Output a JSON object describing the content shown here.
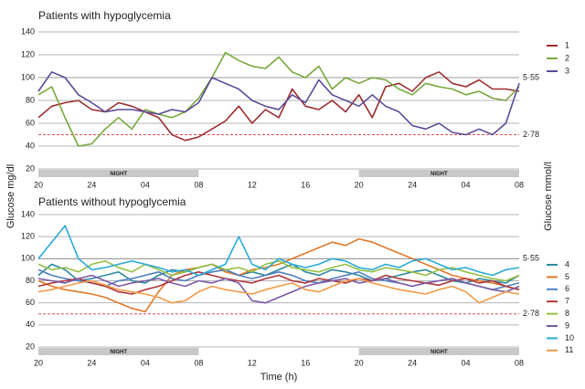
{
  "axis_labels": {
    "y": "Glucose mg/dl",
    "y2": "Glucose mmol/l",
    "x": "Time (h)"
  },
  "chart_data": [
    {
      "type": "line",
      "title": "Patients  with  hypoglycemia",
      "categories": [
        "20",
        null,
        null,
        null,
        "24",
        null,
        null,
        null,
        "04",
        null,
        null,
        null,
        "08",
        null,
        null,
        null,
        "12",
        null,
        null,
        null,
        "16",
        null,
        null,
        null,
        "20",
        null,
        null,
        null,
        "24",
        null,
        null,
        null,
        "04",
        null,
        null,
        null,
        "08"
      ],
      "ylim": [
        20,
        140
      ],
      "yticks": [
        20,
        40,
        60,
        80,
        100,
        120,
        140
      ],
      "grid": true,
      "reference_lines": [
        {
          "value": 100,
          "label": "5·55",
          "color": "#999999",
          "dashed": false
        },
        {
          "value": 50,
          "label": "2·78",
          "color": "#e05050",
          "dashed": true
        }
      ],
      "bands": [
        {
          "label": "NIGHT",
          "start": 0,
          "end": 12
        },
        {
          "label": "NIGHT",
          "start": 24,
          "end": 36
        }
      ],
      "series": [
        {
          "name": "1",
          "color": "#9b2d30",
          "values": [
            65,
            75,
            78,
            80,
            72,
            70,
            78,
            75,
            70,
            65,
            50,
            45,
            48,
            55,
            62,
            75,
            60,
            72,
            65,
            90,
            75,
            72,
            80,
            70,
            85,
            65,
            92,
            95,
            88,
            100,
            105,
            95,
            92,
            98,
            90,
            90,
            88
          ]
        },
        {
          "name": "2",
          "color": "#77a83c",
          "values": [
            85,
            92,
            65,
            40,
            42,
            55,
            65,
            55,
            72,
            68,
            65,
            70,
            82,
            100,
            122,
            115,
            110,
            108,
            118,
            105,
            100,
            110,
            90,
            100,
            95,
            100,
            98,
            90,
            85,
            95,
            92,
            90,
            85,
            88,
            82,
            80,
            92
          ]
        },
        {
          "name": "3",
          "color": "#5b4a96",
          "values": [
            88,
            105,
            100,
            85,
            78,
            70,
            72,
            72,
            70,
            68,
            72,
            70,
            78,
            100,
            95,
            90,
            80,
            75,
            72,
            85,
            78,
            98,
            85,
            80,
            75,
            85,
            75,
            70,
            58,
            55,
            60,
            52,
            50,
            55,
            50,
            60,
            95
          ]
        }
      ]
    },
    {
      "type": "line",
      "title": "Patients  without  hypoglycemia",
      "categories": [
        "20",
        null,
        null,
        null,
        "24",
        null,
        null,
        null,
        "04",
        null,
        null,
        null,
        "08",
        null,
        null,
        null,
        "12",
        null,
        null,
        null,
        "16",
        null,
        null,
        null,
        "20",
        null,
        null,
        null,
        "24",
        null,
        null,
        null,
        "04",
        null,
        null,
        null,
        "08"
      ],
      "ylim": [
        20,
        140
      ],
      "yticks": [
        20,
        40,
        60,
        80,
        100,
        120,
        140
      ],
      "grid": true,
      "reference_lines": [
        {
          "value": 100,
          "label": "5·55",
          "color": "#999999",
          "dashed": false
        },
        {
          "value": 50,
          "label": "2·78",
          "color": "#e05050",
          "dashed": true
        }
      ],
      "bands": [
        {
          "label": "NIGHT",
          "start": 0,
          "end": 12
        },
        {
          "label": "NIGHT",
          "start": 24,
          "end": 36
        }
      ],
      "series": [
        {
          "name": "4",
          "color": "#2e8a9e",
          "values": [
            85,
            95,
            90,
            80,
            82,
            85,
            88,
            80,
            78,
            85,
            90,
            88,
            92,
            95,
            90,
            85,
            88,
            85,
            90,
            95,
            88,
            85,
            90,
            88,
            85,
            80,
            82,
            85,
            88,
            90,
            85,
            80,
            78,
            82,
            80,
            78,
            85
          ]
        },
        {
          "name": "5",
          "color": "#e0782a",
          "values": [
            80,
            75,
            72,
            70,
            68,
            65,
            60,
            55,
            52,
            70,
            85,
            90,
            92,
            95,
            88,
            85,
            90,
            92,
            95,
            100,
            105,
            110,
            115,
            112,
            118,
            115,
            110,
            105,
            100,
            95,
            90,
            85,
            82,
            80,
            78,
            75,
            72
          ]
        },
        {
          "name": "6",
          "color": "#4f7fc0",
          "values": [
            90,
            85,
            82,
            80,
            78,
            75,
            80,
            82,
            85,
            88,
            82,
            80,
            85,
            88,
            90,
            85,
            82,
            85,
            88,
            85,
            80,
            78,
            82,
            85,
            88,
            82,
            80,
            78,
            75,
            78,
            80,
            82,
            78,
            75,
            72,
            75,
            78
          ]
        },
        {
          "name": "7",
          "color": "#b0363a",
          "values": [
            75,
            78,
            80,
            82,
            78,
            75,
            70,
            68,
            72,
            75,
            80,
            85,
            88,
            85,
            82,
            80,
            78,
            82,
            85,
            80,
            78,
            82,
            80,
            78,
            82,
            80,
            85,
            82,
            80,
            78,
            76,
            80,
            82,
            78,
            80,
            75,
            72
          ]
        },
        {
          "name": "8",
          "color": "#94c044",
          "values": [
            95,
            90,
            92,
            88,
            95,
            98,
            92,
            88,
            95,
            90,
            85,
            88,
            92,
            95,
            90,
            92,
            88,
            95,
            98,
            92,
            90,
            88,
            92,
            95,
            90,
            88,
            92,
            90,
            88,
            85,
            90,
            92,
            88,
            85,
            82,
            80,
            85
          ]
        },
        {
          "name": "9",
          "color": "#7b5aa6",
          "values": [
            82,
            80,
            78,
            82,
            85,
            80,
            75,
            78,
            80,
            82,
            78,
            75,
            80,
            78,
            82,
            78,
            62,
            60,
            65,
            70,
            75,
            78,
            80,
            82,
            78,
            80,
            82,
            78,
            75,
            78,
            80,
            82,
            78,
            75,
            72,
            70,
            75
          ]
        },
        {
          "name": "10",
          "color": "#2aaad6",
          "values": [
            100,
            115,
            130,
            100,
            90,
            92,
            95,
            98,
            95,
            92,
            88,
            90,
            85,
            90,
            95,
            120,
            95,
            90,
            100,
            95,
            92,
            95,
            100,
            98,
            92,
            90,
            95,
            92,
            98,
            100,
            95,
            90,
            92,
            88,
            85,
            90,
            92
          ]
        },
        {
          "name": "11",
          "color": "#f29a4a",
          "values": [
            70,
            72,
            75,
            78,
            80,
            76,
            72,
            70,
            68,
            65,
            60,
            62,
            70,
            75,
            72,
            70,
            68,
            72,
            75,
            78,
            72,
            70,
            75,
            80,
            82,
            78,
            75,
            72,
            70,
            68,
            72,
            75,
            70,
            60,
            65,
            70,
            68
          ]
        }
      ]
    }
  ]
}
